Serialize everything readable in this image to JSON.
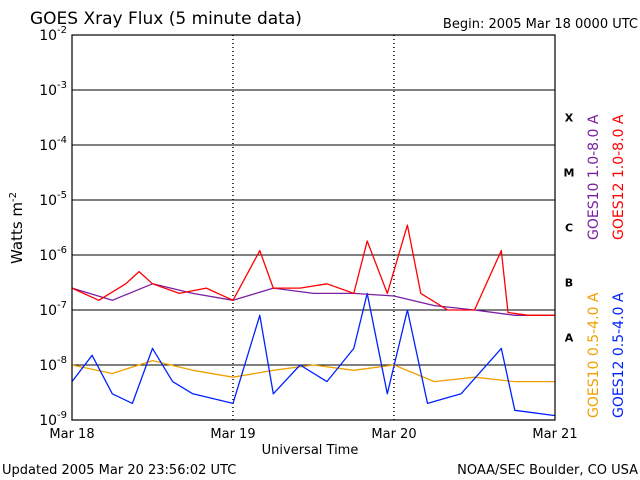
{
  "header": {
    "title": "GOES Xray Flux (5 minute data)",
    "begin": "Begin:  2005 Mar 18 0000 UTC"
  },
  "footer": {
    "updated": "Updated 2005 Mar 20 23:56:02 UTC",
    "credit": "NOAA/SEC Boulder, CO USA"
  },
  "colors": {
    "goes10_long": "#7a1fa2",
    "goes12_long": "#ff0000",
    "goes10_short": "#f0a000",
    "goes12_short": "#0022ff",
    "axis": "#000000"
  },
  "chart_data": {
    "type": "line",
    "title": "GOES Xray Flux (5 minute data)",
    "xlabel": "Universal Time",
    "ylabel": "Watts m",
    "ylabel_superscript": "-2",
    "y_scale": "log",
    "ylim": [
      1e-09,
      0.01
    ],
    "xlim": [
      "2005-03-18",
      "2005-03-21"
    ],
    "x_ticks": [
      "Mar 18",
      "Mar 19",
      "Mar 20",
      "Mar 21"
    ],
    "y_ticks": [
      {
        "base": "10",
        "exp": "-2"
      },
      {
        "base": "10",
        "exp": "-3"
      },
      {
        "base": "10",
        "exp": "-4"
      },
      {
        "base": "10",
        "exp": "-5"
      },
      {
        "base": "10",
        "exp": "-6"
      },
      {
        "base": "10",
        "exp": "-7"
      },
      {
        "base": "10",
        "exp": "-8"
      },
      {
        "base": "10",
        "exp": "-9"
      }
    ],
    "class_letters": [
      "X",
      "M",
      "C",
      "B",
      "A"
    ],
    "grid": "horizontal lines at each decade; dotted vertical lines at each day",
    "legend_placement": "right side, vertical text",
    "series": [
      {
        "name": "GOES10 1.0-8.0 A",
        "color": "#7a1fa2",
        "x": [
          "2005-03-18 00:00",
          "2005-03-18 06:00",
          "2005-03-18 12:00",
          "2005-03-18 18:00",
          "2005-03-19 00:00",
          "2005-03-19 06:00",
          "2005-03-19 12:00",
          "2005-03-19 18:00",
          "2005-03-20 00:00",
          "2005-03-20 06:00",
          "2005-03-20 12:00",
          "2005-03-20 18:00",
          "2005-03-21 00:00"
        ],
        "values": [
          2.5e-07,
          1.5e-07,
          3e-07,
          2e-07,
          1.5e-07,
          2.5e-07,
          2e-07,
          2e-07,
          1.8e-07,
          1.2e-07,
          1e-07,
          8e-08,
          8e-08
        ]
      },
      {
        "name": "GOES12 1.0-8.0 A",
        "color": "#ff0000",
        "x": [
          "2005-03-18 00:00",
          "2005-03-18 04:00",
          "2005-03-18 08:00",
          "2005-03-18 10:00",
          "2005-03-18 12:00",
          "2005-03-18 16:00",
          "2005-03-18 20:00",
          "2005-03-19 00:00",
          "2005-03-19 04:00",
          "2005-03-19 06:00",
          "2005-03-19 10:00",
          "2005-03-19 14:00",
          "2005-03-19 18:00",
          "2005-03-19 20:00",
          "2005-03-19 23:00",
          "2005-03-20 02:00",
          "2005-03-20 04:00",
          "2005-03-20 08:00",
          "2005-03-20 12:00",
          "2005-03-20 16:00",
          "2005-03-20 17:00",
          "2005-03-20 20:00",
          "2005-03-21 00:00"
        ],
        "values": [
          2.5e-07,
          1.5e-07,
          3e-07,
          5e-07,
          3e-07,
          2e-07,
          2.5e-07,
          1.5e-07,
          1.2e-06,
          2.5e-07,
          2.5e-07,
          3e-07,
          2e-07,
          1.8e-06,
          2e-07,
          3.5e-06,
          2e-07,
          1e-07,
          1e-07,
          1.2e-06,
          9e-08,
          8e-08,
          8e-08
        ]
      },
      {
        "name": "GOES10 0.5-4.0 A",
        "color": "#f0a000",
        "x": [
          "2005-03-18 00:00",
          "2005-03-18 06:00",
          "2005-03-18 12:00",
          "2005-03-18 18:00",
          "2005-03-19 00:00",
          "2005-03-19 06:00",
          "2005-03-19 12:00",
          "2005-03-19 18:00",
          "2005-03-20 00:00",
          "2005-03-20 06:00",
          "2005-03-20 12:00",
          "2005-03-20 18:00",
          "2005-03-21 00:00"
        ],
        "values": [
          1e-08,
          7e-09,
          1.2e-08,
          8e-09,
          6e-09,
          8e-09,
          1e-08,
          8e-09,
          1e-08,
          5e-09,
          6e-09,
          5e-09,
          5e-09
        ]
      },
      {
        "name": "GOES12 0.5-4.0 A",
        "color": "#0022ff",
        "x": [
          "2005-03-18 00:00",
          "2005-03-18 03:00",
          "2005-03-18 06:00",
          "2005-03-18 09:00",
          "2005-03-18 12:00",
          "2005-03-18 15:00",
          "2005-03-18 18:00",
          "2005-03-19 00:00",
          "2005-03-19 04:00",
          "2005-03-19 06:00",
          "2005-03-19 10:00",
          "2005-03-19 14:00",
          "2005-03-19 18:00",
          "2005-03-19 20:00",
          "2005-03-19 23:00",
          "2005-03-20 02:00",
          "2005-03-20 05:00",
          "2005-03-20 10:00",
          "2005-03-20 16:00",
          "2005-03-20 18:00",
          "2005-03-21 00:00"
        ],
        "values": [
          5e-09,
          1.5e-08,
          3e-09,
          2e-09,
          2e-08,
          5e-09,
          3e-09,
          2e-09,
          8e-08,
          3e-09,
          1e-08,
          5e-09,
          2e-08,
          2e-07,
          3e-09,
          1e-07,
          2e-09,
          3e-09,
          2e-08,
          1.5e-09,
          1.2e-09
        ]
      }
    ]
  }
}
